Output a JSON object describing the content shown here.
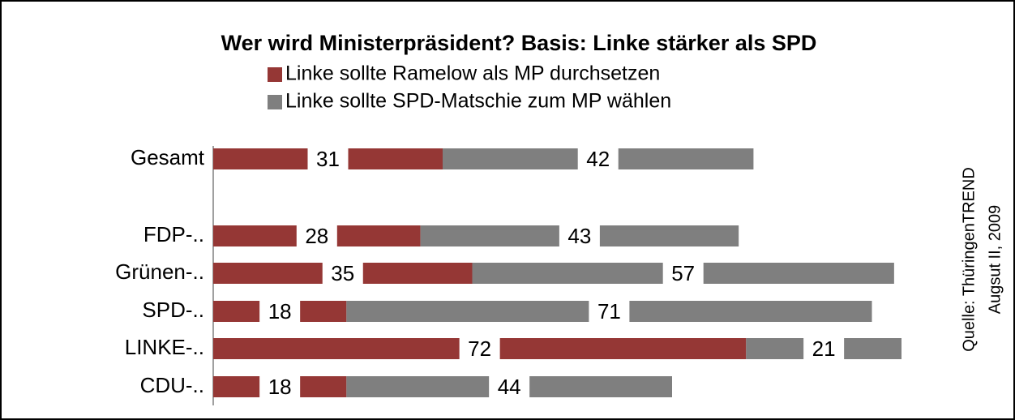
{
  "chart_data": {
    "type": "stacked-barh",
    "title": "Wer wird Ministerpräsident? Basis: Linke stärker als SPD",
    "categories": [
      "Gesamt",
      null,
      "FDP-..",
      "Grünen-..",
      "SPD-..",
      "LINKE-..",
      "CDU-.."
    ],
    "series": [
      {
        "name": "Linke sollte Ramelow als MP durchsetzen",
        "color": "#953735",
        "values": [
          31,
          null,
          28,
          35,
          18,
          72,
          18
        ]
      },
      {
        "name": "Linke sollte SPD-Matschie zum MP wählen",
        "color": "#7f7f7f",
        "values": [
          42,
          null,
          43,
          57,
          71,
          21,
          44
        ]
      }
    ],
    "source": [
      "Quelle: ThüringenTREND",
      "Augsut II, 2009"
    ]
  }
}
